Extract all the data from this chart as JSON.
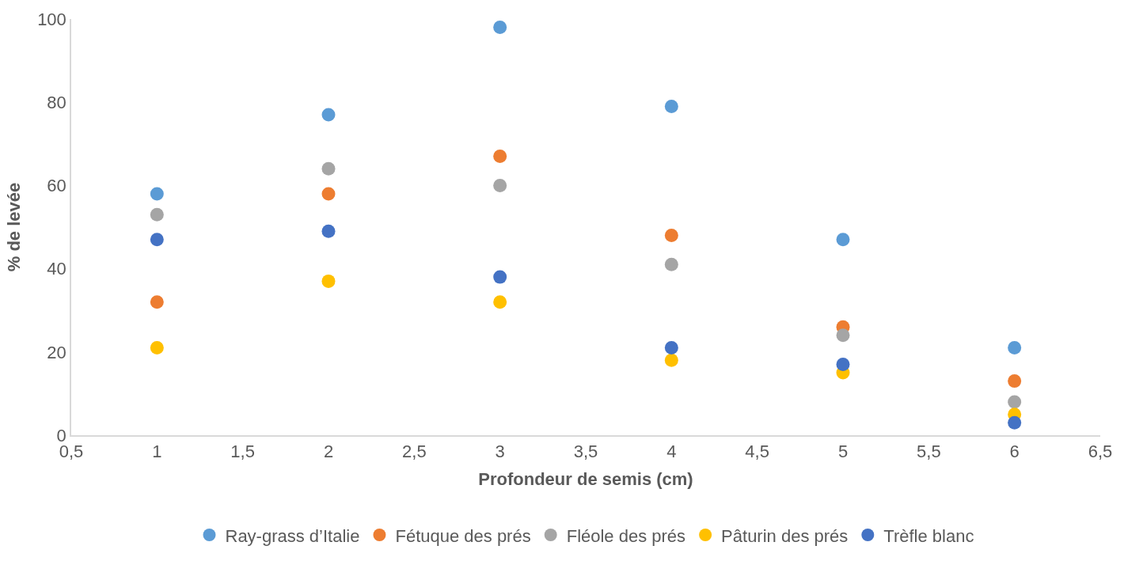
{
  "chart_data": {
    "type": "scatter",
    "xlabel": "Profondeur de semis (cm)",
    "ylabel": "% de levée",
    "x": [
      1,
      2,
      3,
      4,
      5,
      6
    ],
    "series": [
      {
        "name": "Ray-grass d’Italie",
        "color": "#5b9bd5",
        "values": [
          58,
          77,
          98,
          79,
          47,
          21
        ]
      },
      {
        "name": "Fétuque des prés",
        "color": "#ed7d31",
        "values": [
          32,
          58,
          67,
          48,
          26,
          13
        ]
      },
      {
        "name": "Fléole des prés",
        "color": "#a5a5a5",
        "values": [
          53,
          64,
          60,
          41,
          24,
          8
        ]
      },
      {
        "name": "Pâturin des prés",
        "color": "#ffc000",
        "values": [
          21,
          37,
          32,
          18,
          15,
          5
        ]
      },
      {
        "name": "Trèfle blanc",
        "color": "#4472c4",
        "values": [
          47,
          49,
          38,
          21,
          17,
          3
        ]
      }
    ],
    "xlim": [
      0.5,
      6.5
    ],
    "xticks": [
      {
        "value": 0.5,
        "label": "0,5"
      },
      1,
      {
        "value": 1.5,
        "label": "1,5"
      },
      2,
      {
        "value": 2.5,
        "label": "2,5"
      },
      3,
      {
        "value": 3.5,
        "label": "3,5"
      },
      4,
      {
        "value": 4.5,
        "label": "4,5"
      },
      5,
      {
        "value": 5.5,
        "label": "5,5"
      },
      6,
      {
        "value": 6.5,
        "label": "6,5"
      }
    ],
    "ylim": [
      0,
      100
    ],
    "yticks": [
      0,
      20,
      40,
      60,
      80,
      100
    ],
    "legend": "bottom",
    "marker": "circle"
  }
}
